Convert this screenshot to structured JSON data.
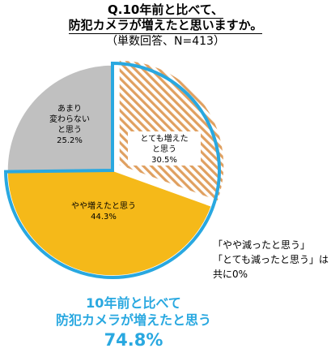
{
  "title": {
    "line1": "Q.10年前と比べて、",
    "line2": "防犯カメラが増えたと思いますか。",
    "line3": "（単数回答、N=413）"
  },
  "chart_data": {
    "type": "pie",
    "slices": [
      {
        "name": "とても増えたと思う",
        "label_lines": [
          "とても増えた",
          "と思う"
        ],
        "value": 30.5,
        "value_label": "30.5%",
        "fill": "hatch",
        "color": "#e0a060"
      },
      {
        "name": "やや増えたと思う",
        "label_lines": [
          "やや増えたと思う"
        ],
        "value": 44.3,
        "value_label": "44.3%",
        "fill": "solid",
        "color": "#f5b919"
      },
      {
        "name": "あまり変わらないと思う",
        "label_lines": [
          "あまり",
          "変わらない",
          "と思う"
        ],
        "value": 25.2,
        "value_label": "25.2%",
        "fill": "solid",
        "color": "#c0c0c0"
      }
    ],
    "highlight_color": "#29a8e0"
  },
  "note": {
    "line1": "「やや減ったと思う」",
    "line2": "「とても減ったと思う」は",
    "line3": "共に0%"
  },
  "summary": {
    "line1": "10年前と比べて",
    "line2": "防犯カメラが増えたと思う",
    "line3": "74.8%"
  }
}
